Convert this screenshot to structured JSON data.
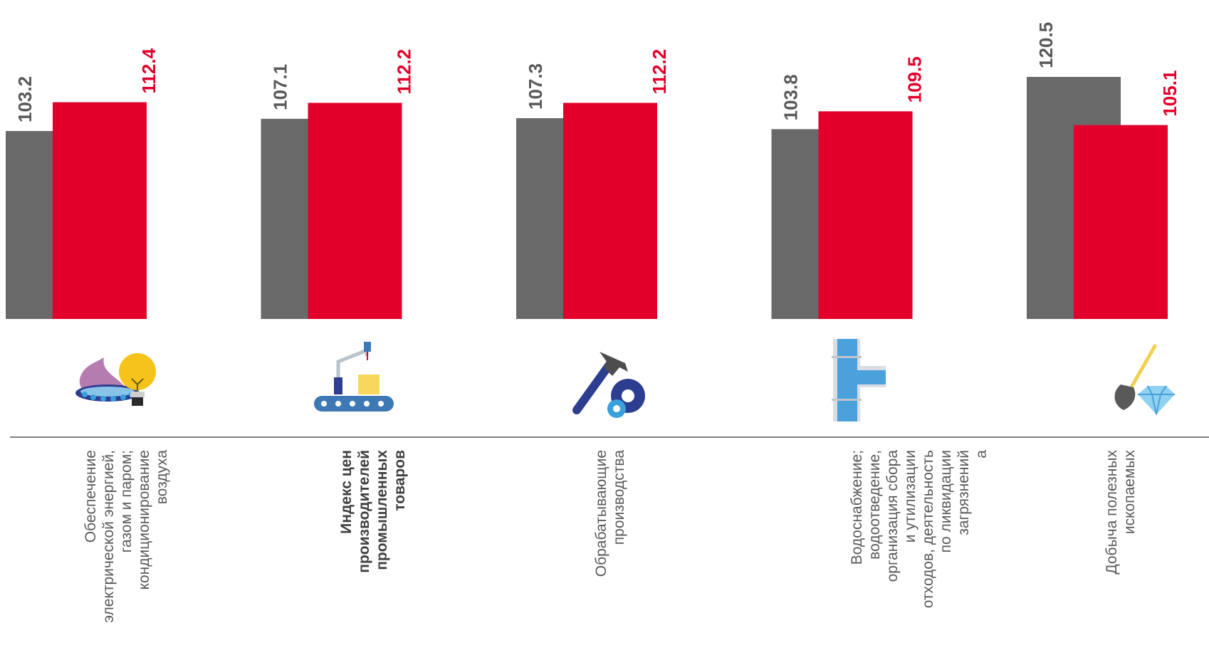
{
  "colors": {
    "series_a": "#696969",
    "series_b": "#E2002B"
  },
  "chart_data": {
    "type": "bar",
    "categories": [
      [
        "Обеспечение",
        "электрической энергией,",
        "газом и паром;",
        "кондиционирование",
        "воздуха"
      ],
      [
        "Индекс цен",
        "производителей",
        "промышленных",
        "товаров"
      ],
      [
        "Обрабатывающие",
        "производства"
      ],
      [
        "Водоснабжение;",
        "водоотведение,",
        "организация сбора",
        "и  утилизации",
        "отходов,  деятельность",
        "по ликвидации",
        "загрязнений",
        "а"
      ],
      [
        "Добыча полезных",
        "ископаемых"
      ]
    ],
    "series": [
      {
        "values": [
          103.2,
          107.1,
          107.3,
          103.8,
          120.5
        ]
      },
      {
        "values": [
          112.4,
          112.2,
          112.2,
          109.5,
          105.1
        ]
      }
    ],
    "value_labels_a": [
      "103.2",
      "107.1",
      "107.3",
      "103.8",
      "120.5"
    ],
    "value_labels_b": [
      "112.4",
      "112.2",
      "112.2",
      "109.5",
      "105.1"
    ],
    "bold_category_index": 1,
    "icons": [
      "gas-flame-and-lightbulb-icon",
      "factory-conveyor-icon",
      "hammer-and-gear-icon",
      "water-pipe-icon",
      "shovel-and-diamond-icon"
    ]
  }
}
